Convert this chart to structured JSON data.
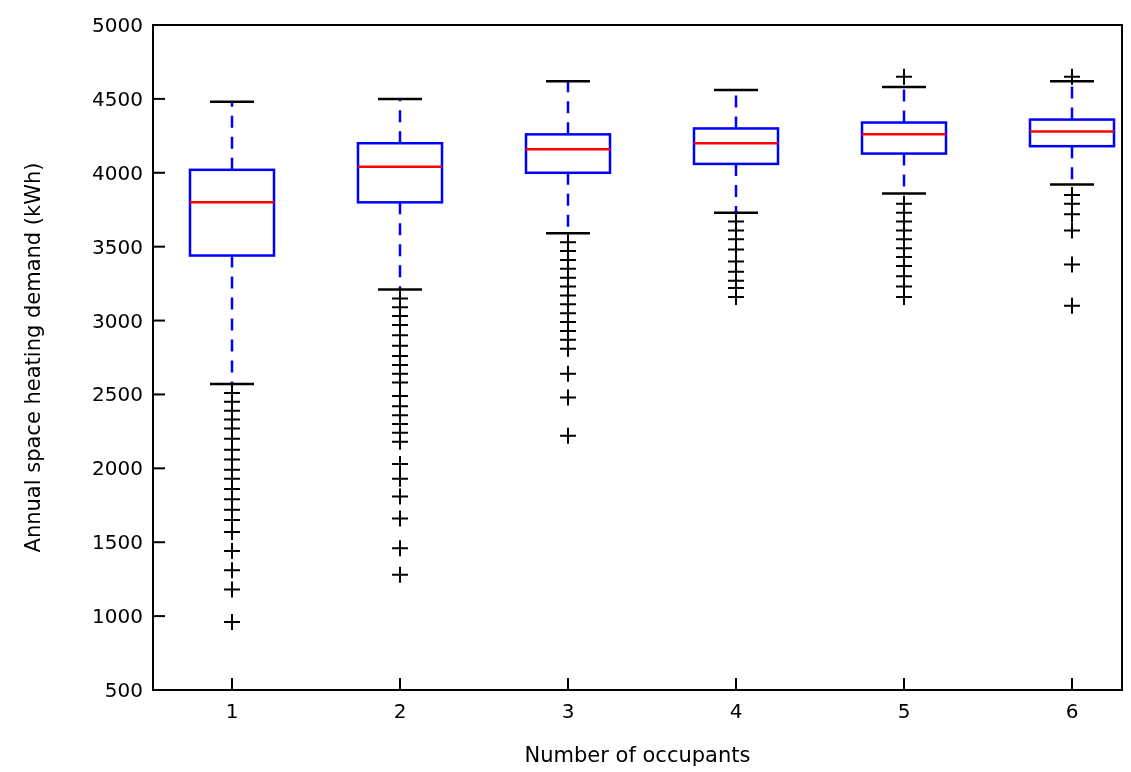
{
  "chart_data": {
    "type": "box",
    "xlabel": "Number of occupants",
    "ylabel": "Annual space heating demand (kWh)",
    "categories": [
      "1",
      "2",
      "3",
      "4",
      "5",
      "6"
    ],
    "ylim": [
      500,
      5000
    ],
    "yticks": [
      500,
      1000,
      1500,
      2000,
      2500,
      3000,
      3500,
      4000,
      4500,
      5000
    ],
    "grid": false,
    "marker": "cross",
    "series": [
      {
        "color": "#0000ff",
        "boxes": [
          {
            "low": 2570,
            "q1": 3440,
            "median": 3800,
            "q3": 4020,
            "high": 4480,
            "outliers": [
              2510,
              2450,
              2390,
              2330,
              2270,
              2200,
              2125,
              2060,
              1990,
              1930,
              1860,
              1790,
              1720,
              1650,
              1570,
              1440,
              1310,
              1180,
              960
            ]
          },
          {
            "low": 3210,
            "q1": 3800,
            "median": 4040,
            "q3": 4200,
            "high": 4500,
            "outliers": [
              3150,
              3090,
              3030,
              2970,
              2900,
              2830,
              2760,
              2700,
              2640,
              2580,
              2490,
              2420,
              2360,
              2300,
              2240,
              2180,
              2030,
              1930,
              1810,
              1660,
              1460,
              1280
            ]
          },
          {
            "low": 3590,
            "q1": 4000,
            "median": 4160,
            "q3": 4260,
            "high": 4620,
            "outliers": [
              3530,
              3470,
              3410,
              3350,
              3290,
              3230,
              3170,
              3110,
              3050,
              2990,
              2930,
              2870,
              2810,
              2640,
              2480,
              2220
            ]
          },
          {
            "low": 3730,
            "q1": 4060,
            "median": 4200,
            "q3": 4300,
            "high": 4560,
            "outliers": [
              3670,
              3610,
              3550,
              3480,
              3400,
              3330,
              3270,
              3220,
              3160
            ]
          },
          {
            "low": 3860,
            "q1": 4130,
            "median": 4260,
            "q3": 4340,
            "high": 4580,
            "outliers": [
              4650,
              3790,
              3730,
              3670,
              3610,
              3550,
              3490,
              3430,
              3370,
              3300,
              3230,
              3160
            ]
          },
          {
            "low": 3920,
            "q1": 4180,
            "median": 4280,
            "q3": 4360,
            "high": 4620,
            "outliers": [
              4650,
              3850,
              3790,
              3720,
              3610,
              3380,
              3100
            ]
          }
        ]
      }
    ]
  }
}
